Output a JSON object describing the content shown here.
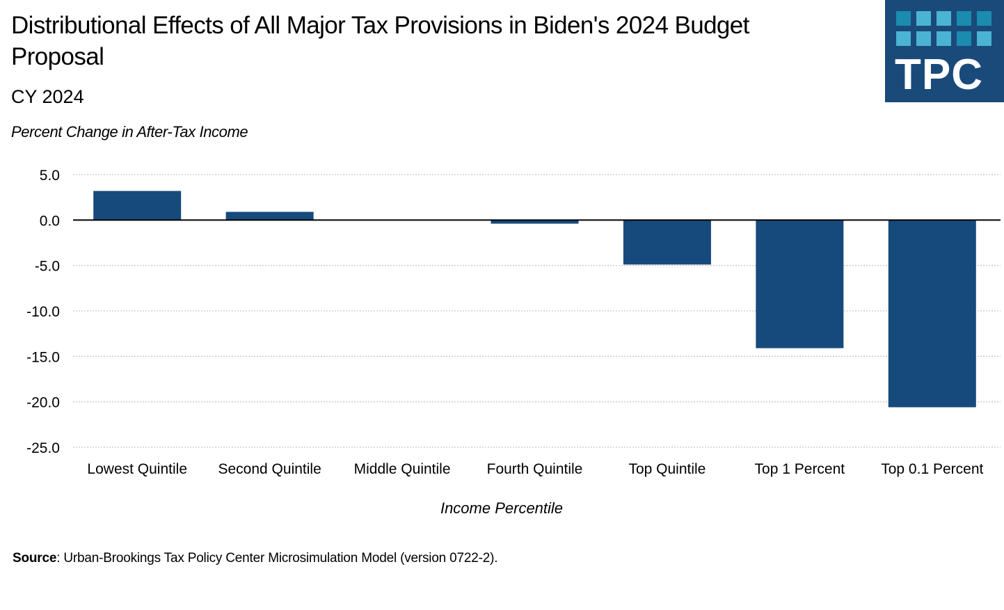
{
  "header": {
    "title": "Distributional Effects of All Major Tax Provisions in Biden's 2024 Budget Proposal",
    "subtitle": "CY 2024",
    "logo_text": "TPC"
  },
  "footer": {
    "source_label": "Source",
    "source_text": ": Urban-Brookings Tax Policy Center Microsimulation Model (version 0722-2)."
  },
  "colors": {
    "bar": "#174a7c",
    "logo_bg": "#1a4a7a",
    "logo_squares": [
      "#1b8bb0",
      "#4bb3d3",
      "#4bb3d3",
      "#1b8bb0",
      "#1b8bb0",
      "#4bb3d3",
      "#4bb3d3",
      "#4bb3d3",
      "#1b8bb0",
      "#4bb3d3"
    ]
  },
  "chart_data": {
    "type": "bar",
    "title": "Distributional Effects of All Major Tax Provisions in Biden's 2024 Budget Proposal",
    "subtitle": "CY 2024",
    "xlabel": "Income Percentile",
    "ylabel": "Percent Change in After-Tax Income",
    "categories": [
      "Lowest Quintile",
      "Second Quintile",
      "Middle Quintile",
      "Fourth Quintile",
      "Top Quintile",
      "Top 1 Percent",
      "Top 0.1 Percent"
    ],
    "values": [
      3.2,
      0.9,
      0.0,
      -0.4,
      -4.9,
      -14.1,
      -20.6
    ],
    "ylim": [
      -25,
      5
    ],
    "yticks": [
      5,
      0,
      -5,
      -10,
      -15,
      -20,
      -25
    ],
    "ytick_labels": [
      "5.0",
      "0.0",
      "-5.0",
      "-10.0",
      "-15.0",
      "-20.0",
      "-25.0"
    ],
    "grid": true,
    "legend": "none"
  }
}
